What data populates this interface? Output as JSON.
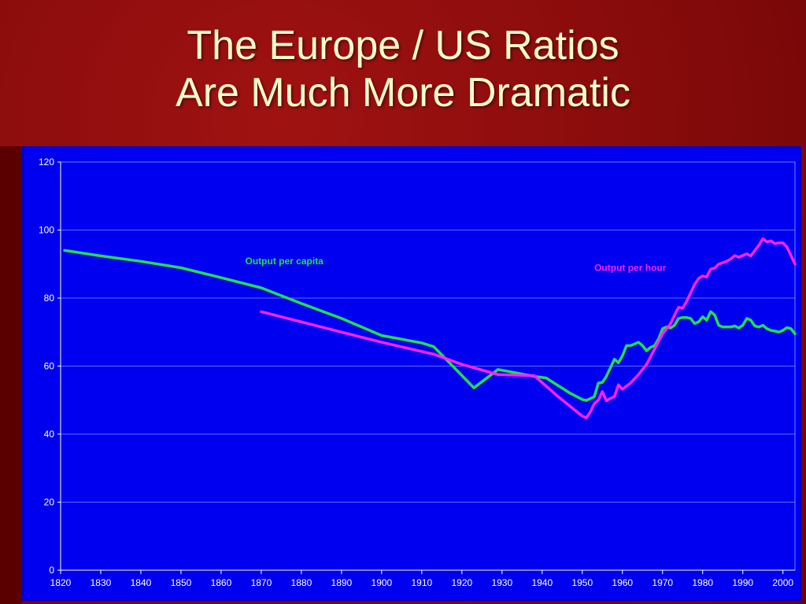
{
  "slide": {
    "title_line1": "The Europe / US Ratios",
    "title_line2": "Are Much More Dramatic"
  },
  "colors": {
    "background": "#8a0c0c",
    "title": "#ffffcc",
    "plot_background": "#0000f0",
    "per_capita": "#22e04a",
    "per_hour": "#ff22ff"
  },
  "chart_data": {
    "type": "line",
    "title": "",
    "xlabel": "",
    "ylabel": "",
    "xlim": [
      1820,
      2003
    ],
    "ylim": [
      0,
      120
    ],
    "x_ticks": [
      1820,
      1830,
      1840,
      1850,
      1860,
      1870,
      1880,
      1890,
      1900,
      1910,
      1920,
      1930,
      1940,
      1950,
      1960,
      1970,
      1980,
      1990,
      2000
    ],
    "y_ticks": [
      0,
      20,
      40,
      60,
      80,
      100,
      120
    ],
    "grid": "horizontal",
    "series": [
      {
        "name": "Output per capita",
        "color": "#22e04a",
        "label_at": [
          1866,
          90
        ],
        "points": [
          [
            1821,
            94
          ],
          [
            1830,
            92.4
          ],
          [
            1840,
            90.8
          ],
          [
            1850,
            88.9
          ],
          [
            1860,
            86
          ],
          [
            1870,
            83
          ],
          [
            1880,
            78.4
          ],
          [
            1890,
            74
          ],
          [
            1900,
            69
          ],
          [
            1910,
            66.8
          ],
          [
            1913,
            65.7
          ],
          [
            1923,
            53.6
          ],
          [
            1929,
            59
          ],
          [
            1938,
            57
          ],
          [
            1941,
            56.5
          ],
          [
            1947,
            52
          ],
          [
            1950,
            50.2
          ],
          [
            1951,
            49.9
          ],
          [
            1953,
            51
          ],
          [
            1954,
            55
          ],
          [
            1955,
            55.2
          ],
          [
            1956,
            57
          ],
          [
            1957,
            59.5
          ],
          [
            1958,
            62
          ],
          [
            1959,
            61
          ],
          [
            1960,
            63
          ],
          [
            1961,
            66
          ],
          [
            1962,
            66
          ],
          [
            1963,
            66.5
          ],
          [
            1964,
            67
          ],
          [
            1965,
            66
          ],
          [
            1966,
            64.5
          ],
          [
            1967,
            65.5
          ],
          [
            1968,
            66
          ],
          [
            1969,
            68
          ],
          [
            1970,
            71
          ],
          [
            1971,
            71.5
          ],
          [
            1972,
            71.2
          ],
          [
            1973,
            72
          ],
          [
            1974,
            74
          ],
          [
            1975,
            74.3
          ],
          [
            1976,
            74.3
          ],
          [
            1977,
            74
          ],
          [
            1978,
            72.5
          ],
          [
            1979,
            73
          ],
          [
            1980,
            74.5
          ],
          [
            1981,
            73.5
          ],
          [
            1982,
            76
          ],
          [
            1983,
            75
          ],
          [
            1984,
            72
          ],
          [
            1985,
            71.5
          ],
          [
            1986,
            71.5
          ],
          [
            1987,
            71.5
          ],
          [
            1988,
            71.8
          ],
          [
            1989,
            71.2
          ],
          [
            1990,
            72
          ],
          [
            1991,
            74
          ],
          [
            1992,
            73.5
          ],
          [
            1993,
            71.8
          ],
          [
            1994,
            71.5
          ],
          [
            1995,
            72
          ],
          [
            1996,
            71
          ],
          [
            1997,
            70.5
          ],
          [
            1998,
            70.3
          ],
          [
            1999,
            70
          ],
          [
            2000,
            70.5
          ],
          [
            2001,
            71.3
          ],
          [
            2002,
            71
          ],
          [
            2003,
            69.5
          ]
        ]
      },
      {
        "name": "Output per hour",
        "color": "#ff22ff",
        "label_at": [
          1953,
          88
        ],
        "points": [
          [
            1870,
            76
          ],
          [
            1880,
            73
          ],
          [
            1890,
            70
          ],
          [
            1900,
            67
          ],
          [
            1913,
            63.5
          ],
          [
            1920,
            60.5
          ],
          [
            1929,
            57.5
          ],
          [
            1938,
            57.2
          ],
          [
            1944,
            51
          ],
          [
            1950,
            45.3
          ],
          [
            1951,
            44.8
          ],
          [
            1952,
            46.5
          ],
          [
            1953,
            49
          ],
          [
            1954,
            50
          ],
          [
            1955,
            52.5
          ],
          [
            1956,
            49.8
          ],
          [
            1957,
            50.5
          ],
          [
            1958,
            51
          ],
          [
            1959,
            54.5
          ],
          [
            1960,
            53.2
          ],
          [
            1962,
            55
          ],
          [
            1964,
            57.5
          ],
          [
            1966,
            60.5
          ],
          [
            1968,
            65
          ],
          [
            1970,
            69.5
          ],
          [
            1972,
            72.5
          ],
          [
            1973,
            75
          ],
          [
            1974,
            77.3
          ],
          [
            1975,
            77
          ],
          [
            1976,
            79
          ],
          [
            1977,
            81.5
          ],
          [
            1978,
            84
          ],
          [
            1979,
            85.8
          ],
          [
            1980,
            86.5
          ],
          [
            1981,
            86.2
          ],
          [
            1982,
            88.5
          ],
          [
            1983,
            88.8
          ],
          [
            1984,
            90
          ],
          [
            1985,
            90.4
          ],
          [
            1986,
            90.8
          ],
          [
            1987,
            91.5
          ],
          [
            1988,
            92.5
          ],
          [
            1989,
            92
          ],
          [
            1990,
            92.5
          ],
          [
            1991,
            93
          ],
          [
            1992,
            92.4
          ],
          [
            1993,
            94
          ],
          [
            1994,
            95.5
          ],
          [
            1995,
            97.5
          ],
          [
            1996,
            96.5
          ],
          [
            1997,
            96.8
          ],
          [
            1998,
            96
          ],
          [
            1999,
            96.2
          ],
          [
            2000,
            96.2
          ],
          [
            2001,
            95
          ],
          [
            2002,
            92.5
          ],
          [
            2003,
            90
          ]
        ]
      }
    ]
  }
}
